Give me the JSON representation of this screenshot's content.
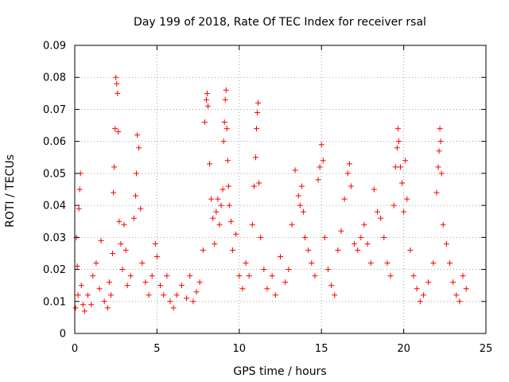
{
  "chart_data": {
    "type": "scatter",
    "title": "Day 199 of 2018, Rate Of TEC Index for receiver rsal",
    "xlabel": "GPS time / hours",
    "ylabel": "ROTI / TECUs",
    "xlim": [
      0,
      25
    ],
    "ylim": [
      0,
      0.09
    ],
    "xticks": [
      "0",
      "5",
      "10",
      "15",
      "20",
      "25"
    ],
    "yticks": [
      "0",
      "0.01",
      "0.02",
      "0.03",
      "0.04",
      "0.05",
      "0.06",
      "0.07",
      "0.08",
      "0.09"
    ],
    "grid": true,
    "marker": "+",
    "color": "#ff0000",
    "series": [
      {
        "name": "rsal",
        "points": [
          [
            0.05,
            0.008
          ],
          [
            0.1,
            0.03
          ],
          [
            0.15,
            0.021
          ],
          [
            0.2,
            0.012
          ],
          [
            0.25,
            0.039
          ],
          [
            0.3,
            0.045
          ],
          [
            0.35,
            0.05
          ],
          [
            0.4,
            0.015
          ],
          [
            0.5,
            0.009
          ],
          [
            0.6,
            0.007
          ],
          [
            0.8,
            0.012
          ],
          [
            1.0,
            0.009
          ],
          [
            1.1,
            0.018
          ],
          [
            1.3,
            0.022
          ],
          [
            1.5,
            0.014
          ],
          [
            1.6,
            0.029
          ],
          [
            1.8,
            0.01
          ],
          [
            2.0,
            0.008
          ],
          [
            2.1,
            0.016
          ],
          [
            2.2,
            0.012
          ],
          [
            2.3,
            0.025
          ],
          [
            2.35,
            0.044
          ],
          [
            2.4,
            0.052
          ],
          [
            2.45,
            0.064
          ],
          [
            2.5,
            0.08
          ],
          [
            2.55,
            0.078
          ],
          [
            2.6,
            0.075
          ],
          [
            2.65,
            0.063
          ],
          [
            2.7,
            0.035
          ],
          [
            2.8,
            0.028
          ],
          [
            2.9,
            0.02
          ],
          [
            3.0,
            0.034
          ],
          [
            3.1,
            0.026
          ],
          [
            3.2,
            0.015
          ],
          [
            3.4,
            0.018
          ],
          [
            3.6,
            0.036
          ],
          [
            3.7,
            0.043
          ],
          [
            3.75,
            0.05
          ],
          [
            3.8,
            0.062
          ],
          [
            3.9,
            0.058
          ],
          [
            4.0,
            0.039
          ],
          [
            4.1,
            0.022
          ],
          [
            4.3,
            0.016
          ],
          [
            4.5,
            0.012
          ],
          [
            4.7,
            0.018
          ],
          [
            4.9,
            0.028
          ],
          [
            5.0,
            0.024
          ],
          [
            5.2,
            0.015
          ],
          [
            5.4,
            0.012
          ],
          [
            5.6,
            0.018
          ],
          [
            5.8,
            0.01
          ],
          [
            6.0,
            0.008
          ],
          [
            6.2,
            0.012
          ],
          [
            6.5,
            0.015
          ],
          [
            6.8,
            0.011
          ],
          [
            7.0,
            0.018
          ],
          [
            7.2,
            0.01
          ],
          [
            7.4,
            0.013
          ],
          [
            7.6,
            0.016
          ],
          [
            7.8,
            0.026
          ],
          [
            7.9,
            0.066
          ],
          [
            8.0,
            0.073
          ],
          [
            8.05,
            0.075
          ],
          [
            8.1,
            0.071
          ],
          [
            8.2,
            0.053
          ],
          [
            8.3,
            0.042
          ],
          [
            8.4,
            0.036
          ],
          [
            8.5,
            0.028
          ],
          [
            8.6,
            0.038
          ],
          [
            8.7,
            0.042
          ],
          [
            8.8,
            0.034
          ],
          [
            8.9,
            0.04
          ],
          [
            9.0,
            0.045
          ],
          [
            9.05,
            0.06
          ],
          [
            9.1,
            0.066
          ],
          [
            9.15,
            0.073
          ],
          [
            9.2,
            0.076
          ],
          [
            9.25,
            0.064
          ],
          [
            9.3,
            0.054
          ],
          [
            9.35,
            0.046
          ],
          [
            9.4,
            0.04
          ],
          [
            9.5,
            0.035
          ],
          [
            9.6,
            0.026
          ],
          [
            9.8,
            0.031
          ],
          [
            10.0,
            0.018
          ],
          [
            10.2,
            0.014
          ],
          [
            10.4,
            0.022
          ],
          [
            10.6,
            0.018
          ],
          [
            10.8,
            0.034
          ],
          [
            10.9,
            0.046
          ],
          [
            11.0,
            0.055
          ],
          [
            11.05,
            0.064
          ],
          [
            11.1,
            0.069
          ],
          [
            11.15,
            0.072
          ],
          [
            11.2,
            0.047
          ],
          [
            11.3,
            0.03
          ],
          [
            11.5,
            0.02
          ],
          [
            11.7,
            0.014
          ],
          [
            12.0,
            0.018
          ],
          [
            12.2,
            0.012
          ],
          [
            12.5,
            0.024
          ],
          [
            12.8,
            0.016
          ],
          [
            13.0,
            0.02
          ],
          [
            13.2,
            0.034
          ],
          [
            13.4,
            0.051
          ],
          [
            13.6,
            0.043
          ],
          [
            13.7,
            0.04
          ],
          [
            13.8,
            0.046
          ],
          [
            13.9,
            0.038
          ],
          [
            14.0,
            0.03
          ],
          [
            14.2,
            0.026
          ],
          [
            14.4,
            0.022
          ],
          [
            14.6,
            0.018
          ],
          [
            14.8,
            0.048
          ],
          [
            14.9,
            0.052
          ],
          [
            15.0,
            0.059
          ],
          [
            15.1,
            0.054
          ],
          [
            15.2,
            0.03
          ],
          [
            15.4,
            0.02
          ],
          [
            15.6,
            0.015
          ],
          [
            15.8,
            0.012
          ],
          [
            16.0,
            0.026
          ],
          [
            16.2,
            0.032
          ],
          [
            16.4,
            0.042
          ],
          [
            16.6,
            0.05
          ],
          [
            16.7,
            0.053
          ],
          [
            16.8,
            0.046
          ],
          [
            17.0,
            0.028
          ],
          [
            17.2,
            0.026
          ],
          [
            17.4,
            0.03
          ],
          [
            17.6,
            0.034
          ],
          [
            17.8,
            0.028
          ],
          [
            18.0,
            0.022
          ],
          [
            18.2,
            0.045
          ],
          [
            18.4,
            0.038
          ],
          [
            18.6,
            0.036
          ],
          [
            18.8,
            0.03
          ],
          [
            19.0,
            0.022
          ],
          [
            19.2,
            0.018
          ],
          [
            19.4,
            0.04
          ],
          [
            19.5,
            0.052
          ],
          [
            19.6,
            0.058
          ],
          [
            19.65,
            0.064
          ],
          [
            19.7,
            0.06
          ],
          [
            19.8,
            0.052
          ],
          [
            19.9,
            0.047
          ],
          [
            20.0,
            0.038
          ],
          [
            20.1,
            0.054
          ],
          [
            20.2,
            0.042
          ],
          [
            20.4,
            0.026
          ],
          [
            20.6,
            0.018
          ],
          [
            20.8,
            0.014
          ],
          [
            21.0,
            0.01
          ],
          [
            21.2,
            0.012
          ],
          [
            21.5,
            0.016
          ],
          [
            21.8,
            0.022
          ],
          [
            22.0,
            0.044
          ],
          [
            22.1,
            0.052
          ],
          [
            22.15,
            0.057
          ],
          [
            22.2,
            0.064
          ],
          [
            22.25,
            0.06
          ],
          [
            22.3,
            0.05
          ],
          [
            22.4,
            0.034
          ],
          [
            22.6,
            0.028
          ],
          [
            22.8,
            0.022
          ],
          [
            23.0,
            0.016
          ],
          [
            23.2,
            0.012
          ],
          [
            23.4,
            0.01
          ],
          [
            23.6,
            0.018
          ],
          [
            23.8,
            0.014
          ]
        ]
      }
    ]
  }
}
